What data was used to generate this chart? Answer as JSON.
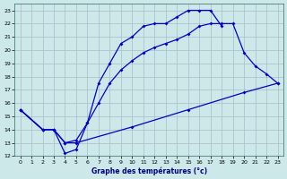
{
  "title": "Graphe des températures (°c)",
  "bg_color": "#cce8e8",
  "grid_color": "#aabbcc",
  "line_color": "#0000cc",
  "xlim": [
    -0.5,
    23.5
  ],
  "ylim": [
    12,
    23.5
  ],
  "xticks": [
    0,
    1,
    2,
    3,
    4,
    5,
    6,
    7,
    8,
    9,
    10,
    11,
    12,
    13,
    14,
    15,
    16,
    17,
    18,
    19,
    20,
    21,
    22,
    23
  ],
  "yticks": [
    12,
    13,
    14,
    15,
    16,
    17,
    18,
    19,
    20,
    21,
    22,
    23
  ],
  "line1_x": [
    0,
    2,
    3,
    4,
    5,
    6,
    7,
    8,
    9,
    10,
    11,
    12,
    13,
    14,
    15,
    16,
    17,
    18
  ],
  "line1_y": [
    15.5,
    14.0,
    14.0,
    12.2,
    12.5,
    14.5,
    17.5,
    19.0,
    20.5,
    21.0,
    21.8,
    22.0,
    22.0,
    22.5,
    23.0,
    23.0,
    23.0,
    21.8
  ],
  "line2_x": [
    0,
    2,
    3,
    4,
    5,
    6,
    7,
    8,
    9,
    10,
    11,
    12,
    13,
    14,
    15,
    16,
    17,
    18,
    19,
    20,
    21,
    22,
    23
  ],
  "line2_y": [
    15.5,
    14.0,
    14.0,
    13.0,
    13.2,
    14.5,
    16.0,
    17.5,
    18.5,
    19.2,
    19.8,
    20.2,
    20.5,
    20.8,
    21.2,
    21.8,
    22.0,
    22.0,
    22.0,
    19.8,
    18.8,
    18.2,
    17.5
  ],
  "line3_x": [
    0,
    2,
    3,
    4,
    5,
    10,
    15,
    20,
    23
  ],
  "line3_y": [
    15.5,
    14.0,
    14.0,
    13.0,
    13.0,
    14.2,
    15.5,
    16.8,
    17.5
  ]
}
